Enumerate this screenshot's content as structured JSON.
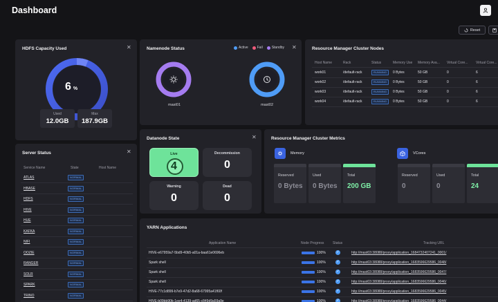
{
  "header": {
    "title": "Dashboard",
    "reset_label": "Reset"
  },
  "hdfs": {
    "title": "HDFS Capacity Used",
    "percent": "6",
    "percent_unit": "%",
    "used_label": "Used",
    "used_value": "12.0GB",
    "max_label": "Max",
    "max_value": "187.9GB"
  },
  "namenode": {
    "title": "Namenode Status",
    "legend": [
      {
        "label": "Active",
        "color": "#4f9cf6"
      },
      {
        "label": "Fail",
        "color": "#ef5a7a"
      },
      {
        "label": "Standby",
        "color": "#a57cf0"
      }
    ],
    "nodes": [
      {
        "name": "mast01",
        "icon": "sun-icon",
        "status_color": "#a57cf0"
      },
      {
        "name": "mast02",
        "icon": "clock-icon",
        "status_color": "#4f9cf6"
      }
    ]
  },
  "rm_nodes": {
    "title": "Resource Manager Cluster Nodes",
    "columns": [
      "Host Name",
      "Rack",
      "Status",
      "Memory Use",
      "Memory Ava...",
      "Virtual Core...",
      "Virtual Core..."
    ],
    "rows": [
      [
        "work01",
        "/default-rack",
        "RUNNING",
        "0 Bytes",
        "50 GB",
        "0",
        "6"
      ],
      [
        "work02",
        "/default-rack",
        "RUNNING",
        "0 Bytes",
        "50 GB",
        "0",
        "6"
      ],
      [
        "work03",
        "/default-rack",
        "RUNNING",
        "0 Bytes",
        "50 GB",
        "0",
        "6"
      ],
      [
        "work04",
        "/default-rack",
        "RUNNING",
        "0 Bytes",
        "50 GB",
        "0",
        "6"
      ]
    ]
  },
  "datanode": {
    "title": "Datanode State",
    "live_label": "Live",
    "live_value": "4",
    "decom_label": "Decommission",
    "decom_value": "0",
    "warning_label": "Warning",
    "warning_value": "0",
    "dead_label": "Dead",
    "dead_value": "0"
  },
  "rm_metrics": {
    "title": "Resource Manager Cluster Metrics",
    "memory_label": "Memory",
    "vcores_label": "VCores",
    "memory": [
      {
        "label": "Reserved",
        "value": "0 Bytes"
      },
      {
        "label": "Used",
        "value": "0 Bytes"
      },
      {
        "label": "Total",
        "value": "200 GB"
      }
    ],
    "vcores": [
      {
        "label": "Reserved",
        "value": "0"
      },
      {
        "label": "Used",
        "value": "0"
      },
      {
        "label": "Total",
        "value": "24"
      }
    ]
  },
  "server_status": {
    "title": "Server Status",
    "columns": [
      "Service Name",
      "State",
      "Host Name"
    ],
    "rows": [
      {
        "name": "ATLAS",
        "state": "NORMAL"
      },
      {
        "name": "HBASE",
        "state": "NORMAL"
      },
      {
        "name": "HDFS",
        "state": "NORMAL"
      },
      {
        "name": "HIVE",
        "state": "NORMAL"
      },
      {
        "name": "HUE",
        "state": "NORMAL"
      },
      {
        "name": "KAFKA",
        "state": "NORMAL"
      },
      {
        "name": "NIFI",
        "state": "NORMAL"
      },
      {
        "name": "OOZIE",
        "state": "NORMAL"
      },
      {
        "name": "RANGER",
        "state": "NORMAL"
      },
      {
        "name": "SOLR",
        "state": "NORMAL"
      },
      {
        "name": "SPARK",
        "state": "NORMAL"
      },
      {
        "name": "TRINO",
        "state": "NORMAL"
      }
    ]
  },
  "yarn": {
    "title": "YARN Applications",
    "columns": [
      "Application Name",
      "Node Progress",
      "Status",
      "Tracking URL"
    ],
    "rows": [
      {
        "name": "HIVE-e67959a7-5bd9-40b5-a01a-baa61e0696eb",
        "progress": 1.0,
        "progress_label": "100%",
        "url": "http://mast03:38088/proxy/application_1684732407241_0001/"
      },
      {
        "name": "Spark shell",
        "progress": 1.0,
        "progress_label": "100%",
        "url": "http://mast03:38088/proxy/application_1683596629586_0048/"
      },
      {
        "name": "Spark shell",
        "progress": 1.0,
        "progress_label": "100%",
        "url": "http://mast03:38088/proxy/application_1683596629586_0047/"
      },
      {
        "name": "Spark shell",
        "progress": 1.0,
        "progress_label": "100%",
        "url": "http://mast03:38088/proxy/application_1683596629586_0046/"
      },
      {
        "name": "HIVE-77c1d899-b7e9-47d2-8a68-67995a41f60f",
        "progress": 1.0,
        "progress_label": "100%",
        "url": "http://mast03:38088/proxy/application_1683596629586_0045/"
      },
      {
        "name": "HIVE-b09bb90b-1ee4-4139-ad65-c849d9a59a9e",
        "progress": 1.0,
        "progress_label": "100%",
        "url": "http://mast03:38088/proxy/application_1683596629586_0044/"
      }
    ]
  }
}
